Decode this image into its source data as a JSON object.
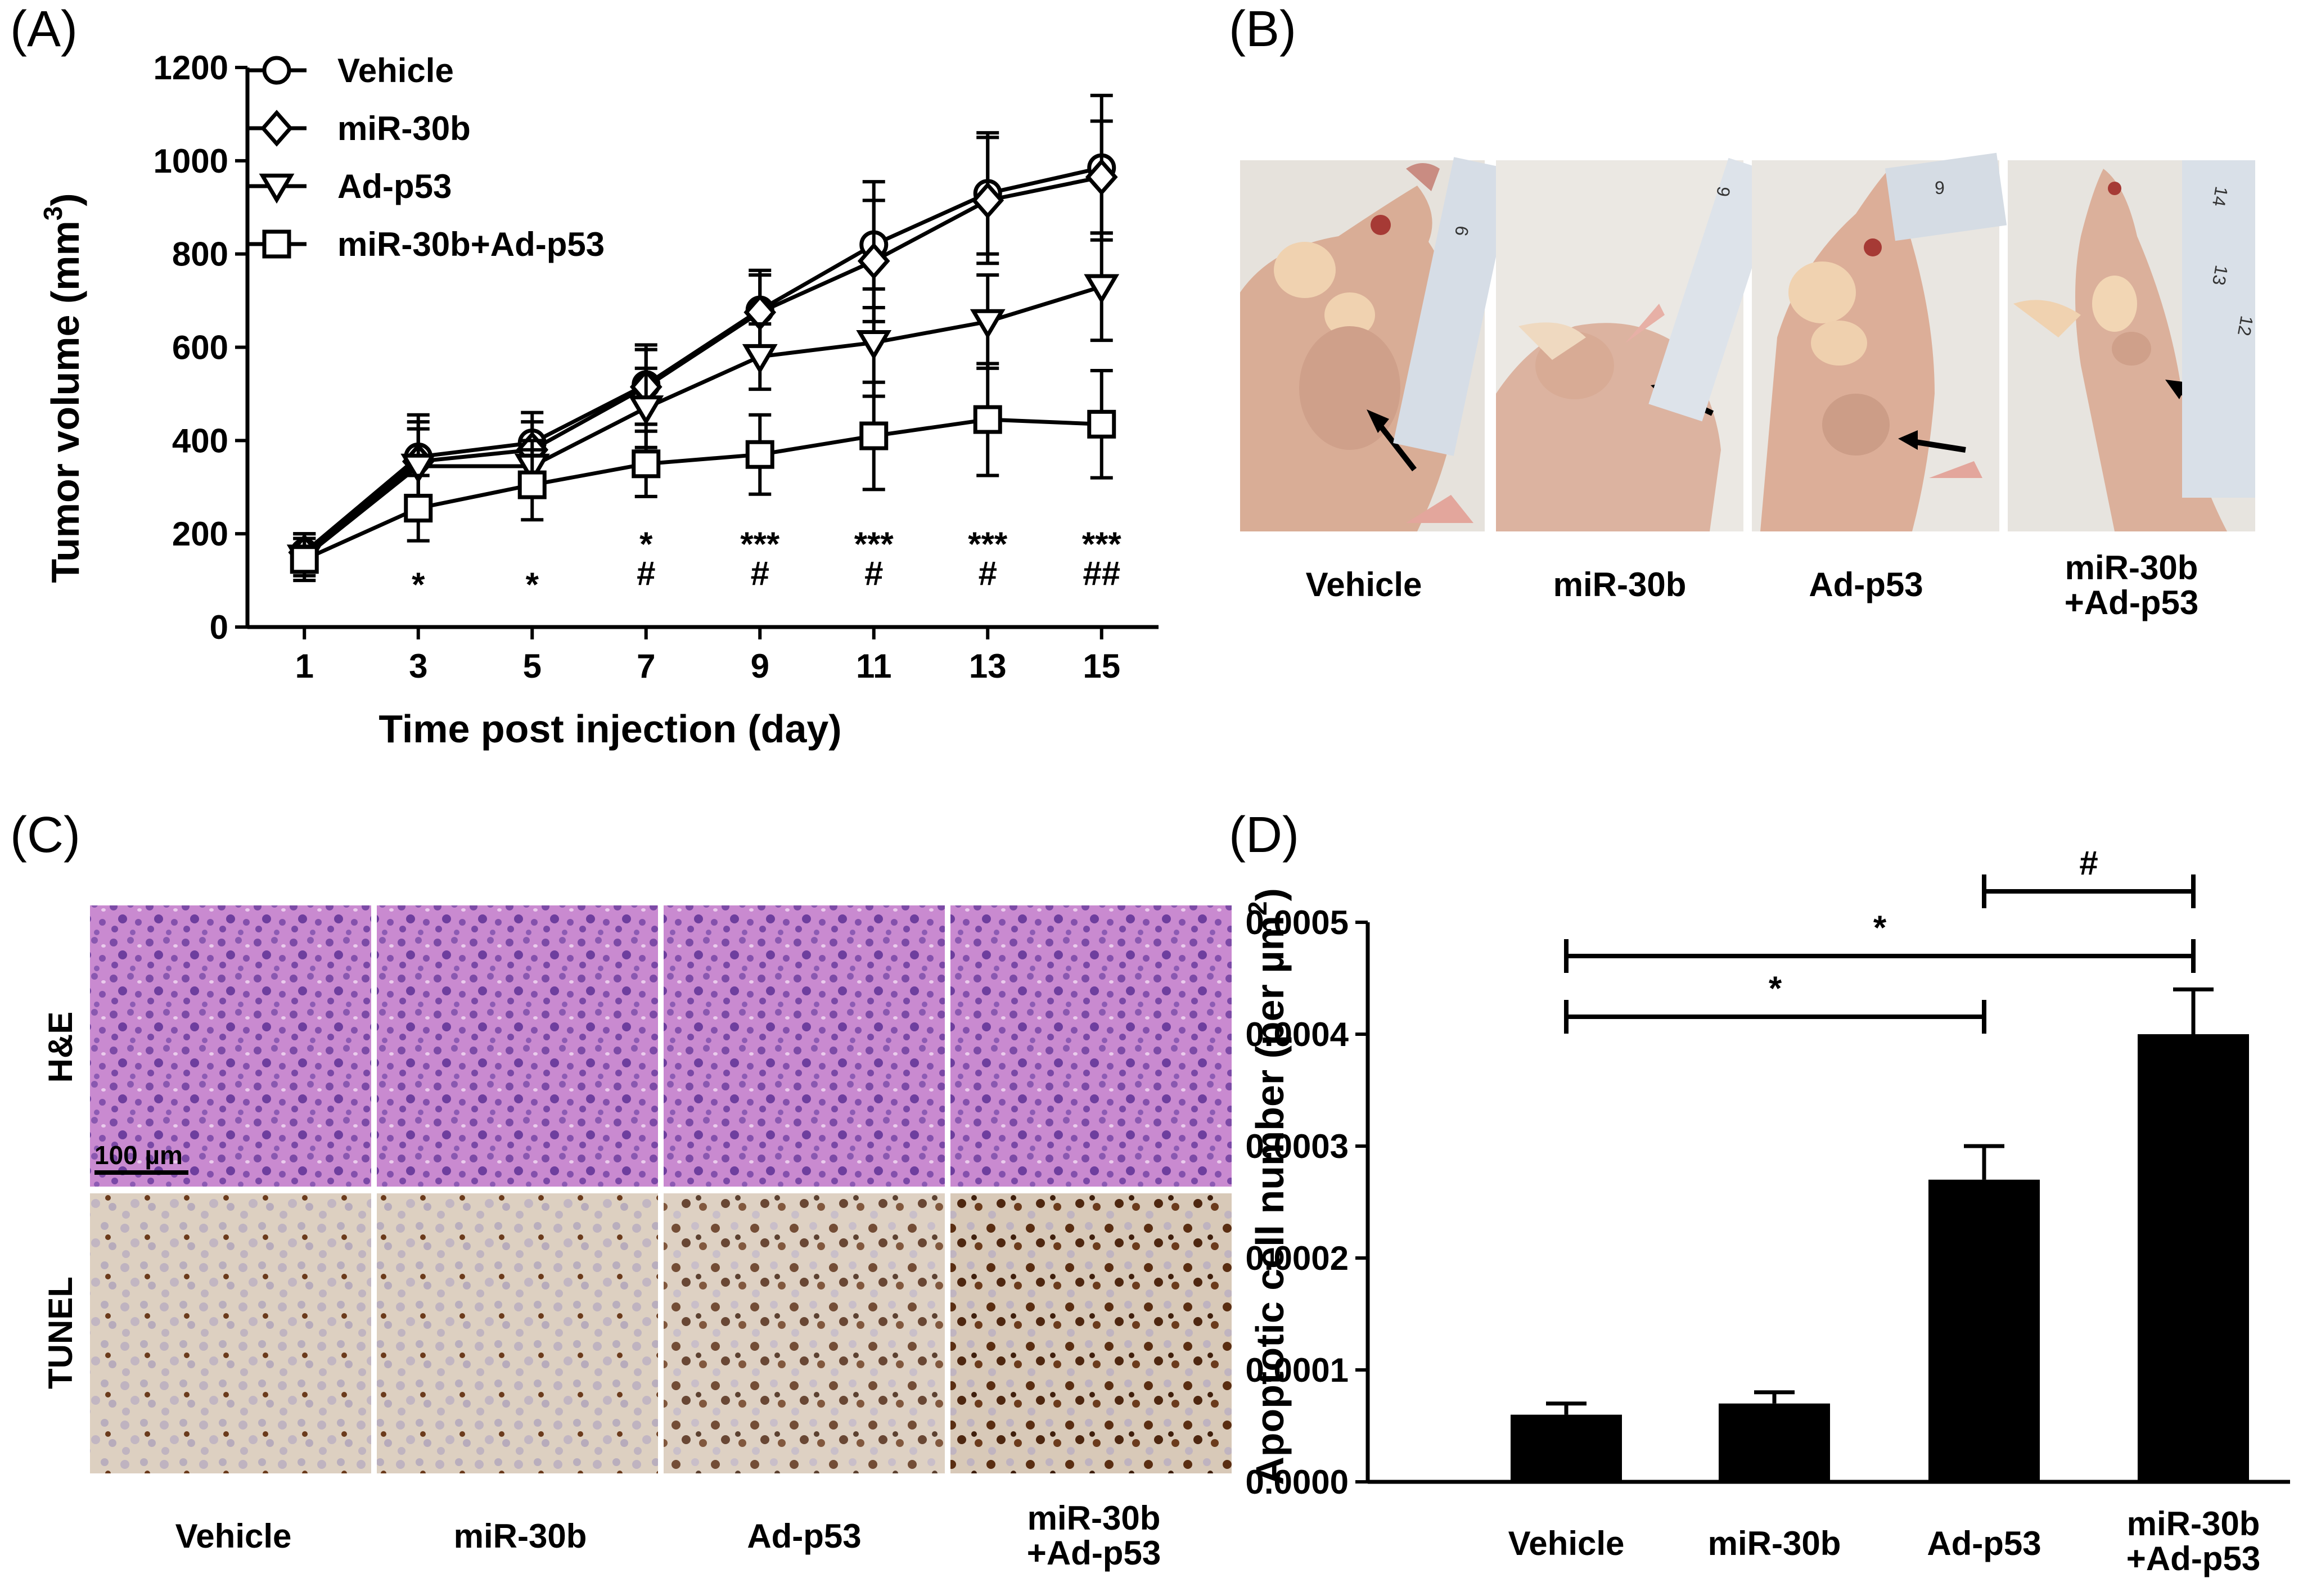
{
  "panels": {
    "A": "(A)",
    "B": "(B)",
    "C": "(C)",
    "D": "(D)"
  },
  "chart_data": [
    {
      "type": "line",
      "xlabel": "Time post injection (day)",
      "ylabel": "Tumor volume (mm",
      "ylabel_sup": "3",
      "ylabel_close": ")",
      "x": [
        1,
        3,
        5,
        7,
        9,
        11,
        13,
        15
      ],
      "xlim": [
        0,
        16
      ],
      "ylim": [
        0,
        1200
      ],
      "yticks": [
        0,
        200,
        400,
        600,
        800,
        1000,
        1200
      ],
      "series": [
        {
          "name": "Vehicle",
          "marker": "circle",
          "values": [
            160,
            365,
            395,
            520,
            680,
            820,
            930,
            985
          ],
          "errors": [
            40,
            90,
            65,
            85,
            85,
            135,
            130,
            155
          ]
        },
        {
          "name": "miR-30b",
          "marker": "diamond",
          "values": [
            160,
            355,
            380,
            515,
            675,
            785,
            915,
            965
          ],
          "errors": [
            40,
            85,
            60,
            80,
            80,
            130,
            135,
            120
          ]
        },
        {
          "name": "Ad-p53",
          "marker": "triangle-down",
          "values": [
            150,
            345,
            345,
            470,
            580,
            610,
            655,
            730
          ],
          "errors": [
            40,
            80,
            55,
            85,
            70,
            115,
            100,
            115
          ]
        },
        {
          "name": "miR-30b+Ad-p53",
          "marker": "square",
          "values": [
            145,
            255,
            305,
            350,
            370,
            410,
            445,
            435
          ],
          "errors": [
            45,
            70,
            75,
            70,
            85,
            115,
            120,
            115
          ]
        }
      ],
      "annotations": [
        {
          "x": 3,
          "lines": [
            "*"
          ]
        },
        {
          "x": 5,
          "lines": [
            "*"
          ]
        },
        {
          "x": 7,
          "lines": [
            "*",
            "#"
          ]
        },
        {
          "x": 9,
          "lines": [
            "***",
            "#"
          ]
        },
        {
          "x": 11,
          "lines": [
            "***",
            "#"
          ]
        },
        {
          "x": 13,
          "lines": [
            "***",
            "#"
          ]
        },
        {
          "x": 15,
          "lines": [
            "***",
            "##"
          ]
        }
      ]
    },
    {
      "type": "bar",
      "categories": [
        "Vehicle",
        "miR-30b",
        "Ad-p53",
        "miR-30b\n+Ad-p53"
      ],
      "values": [
        6e-05,
        7e-05,
        0.00027,
        0.0004
      ],
      "errors": [
        1e-05,
        1e-05,
        3e-05,
        4e-05
      ],
      "ylabel": "Apoptotic cell number (per µm",
      "ylabel_sup": "2",
      "ylabel_close": ")",
      "ylim": [
        0,
        0.0005
      ],
      "yticks": [
        "0.0000",
        "0.0001",
        "0.0002",
        "0.0003",
        "0.0004",
        "0.0005"
      ],
      "significance": [
        {
          "from": 0,
          "to": 2,
          "label": "*"
        },
        {
          "from": 0,
          "to": 3,
          "label": "*"
        },
        {
          "from": 2,
          "to": 3,
          "label": "#"
        }
      ]
    }
  ],
  "photos_b": {
    "labels": [
      "Vehicle",
      "miR-30b",
      "Ad-p53",
      "miR-30b\n+Ad-p53"
    ],
    "ruler_numbers": [
      "6",
      "9",
      "13",
      "14",
      "12"
    ]
  },
  "histology_c": {
    "rows": [
      "H&E",
      "TUNEL"
    ],
    "columns": [
      "Vehicle",
      "miR-30b",
      "Ad-p53",
      "miR-30b\n+Ad-p53"
    ],
    "scale_bar": "100 µm"
  },
  "colors": {
    "he": "#c781cf",
    "tunel": "#dccfc0",
    "skin": "#d8b19c",
    "bg": "#e8e4de",
    "ink": "#000000"
  }
}
